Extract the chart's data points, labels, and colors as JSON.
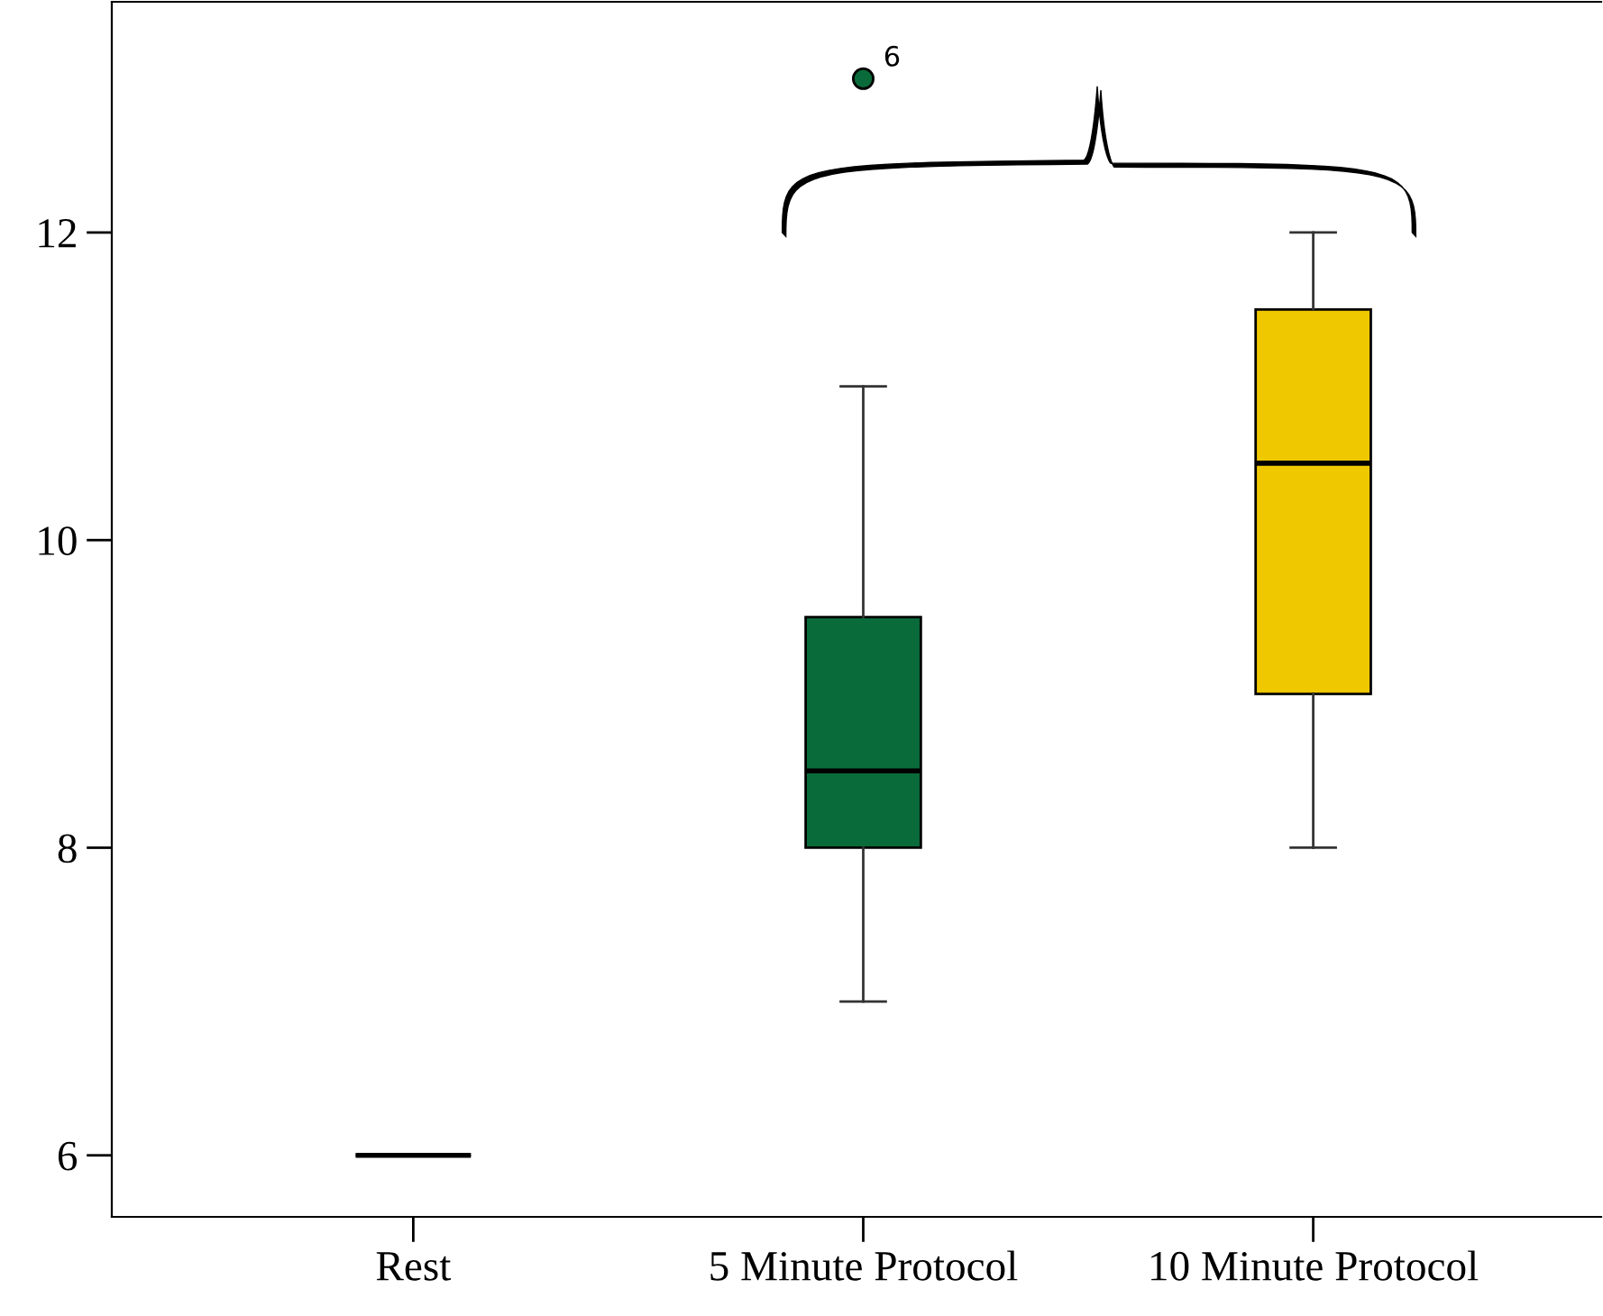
{
  "chart_data": {
    "type": "box",
    "categories": [
      "Rest",
      "5 Minute Protocol",
      "10 Minute Protocol"
    ],
    "boxes": [
      {
        "low": 6,
        "q1": 6,
        "median": 6,
        "q3": 6,
        "high": 6
      },
      {
        "low": 7,
        "q1": 8,
        "median": 8.5,
        "q3": 9.5,
        "high": 11,
        "outliers": [
          13
        ]
      },
      {
        "low": 8,
        "q1": 9,
        "median": 10.5,
        "q3": 11.5,
        "high": 12
      }
    ],
    "colors": [
      null,
      "#0a6b3a",
      "#f0c800"
    ],
    "ylim": [
      5.6,
      13.5
    ],
    "yticks": [
      6,
      8,
      10,
      12
    ],
    "grid": false,
    "annotations": [
      "6"
    ]
  }
}
